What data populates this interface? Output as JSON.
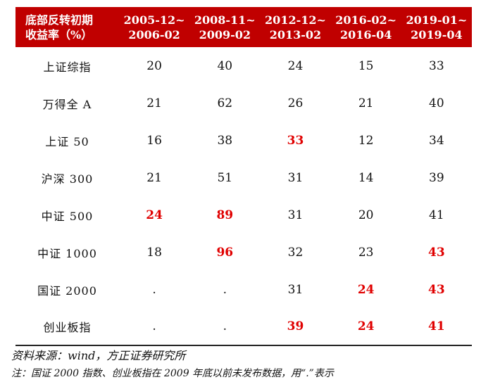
{
  "table": {
    "header_line1": "底部反转初期",
    "header_line2": "收益率（%）",
    "columns": [
      {
        "start": "2005-12~",
        "end": "2006-02"
      },
      {
        "start": "2008-11~",
        "end": "2009-02"
      },
      {
        "start": "2012-12~",
        "end": "2013-02"
      },
      {
        "start": "2016-02~",
        "end": "2016-04"
      },
      {
        "start": "2019-01~",
        "end": "2019-04"
      }
    ],
    "rows": [
      {
        "label": "上证综指",
        "values": [
          "20",
          "40",
          "24",
          "15",
          "33"
        ],
        "highlight": [
          false,
          false,
          false,
          false,
          false
        ]
      },
      {
        "label": "万得全 A",
        "values": [
          "21",
          "62",
          "26",
          "21",
          "40"
        ],
        "highlight": [
          false,
          false,
          false,
          false,
          false
        ]
      },
      {
        "label": "上证 50",
        "values": [
          "16",
          "38",
          "33",
          "12",
          "34"
        ],
        "highlight": [
          false,
          false,
          true,
          false,
          false
        ]
      },
      {
        "label": "沪深 300",
        "values": [
          "21",
          "51",
          "31",
          "14",
          "39"
        ],
        "highlight": [
          false,
          false,
          false,
          false,
          false
        ]
      },
      {
        "label": "中证 500",
        "values": [
          "24",
          "89",
          "31",
          "20",
          "41"
        ],
        "highlight": [
          true,
          true,
          false,
          false,
          false
        ]
      },
      {
        "label": "中证 1000",
        "values": [
          "18",
          "96",
          "32",
          "23",
          "43"
        ],
        "highlight": [
          false,
          true,
          false,
          false,
          true
        ]
      },
      {
        "label": "国证 2000",
        "values": [
          ".",
          ".",
          "31",
          "24",
          "43"
        ],
        "highlight": [
          false,
          false,
          false,
          true,
          true
        ]
      },
      {
        "label": "创业板指",
        "values": [
          ".",
          ".",
          "39",
          "24",
          "41"
        ],
        "highlight": [
          false,
          false,
          true,
          true,
          true
        ]
      }
    ]
  },
  "source": "资料来源：wind，方正证券研究所",
  "note": "注：国证 2000 指数、创业板指在 2009 年底以前未发布数据，用“.”表示",
  "colors": {
    "header_bg": "#c00000",
    "highlight": "#e00000"
  }
}
